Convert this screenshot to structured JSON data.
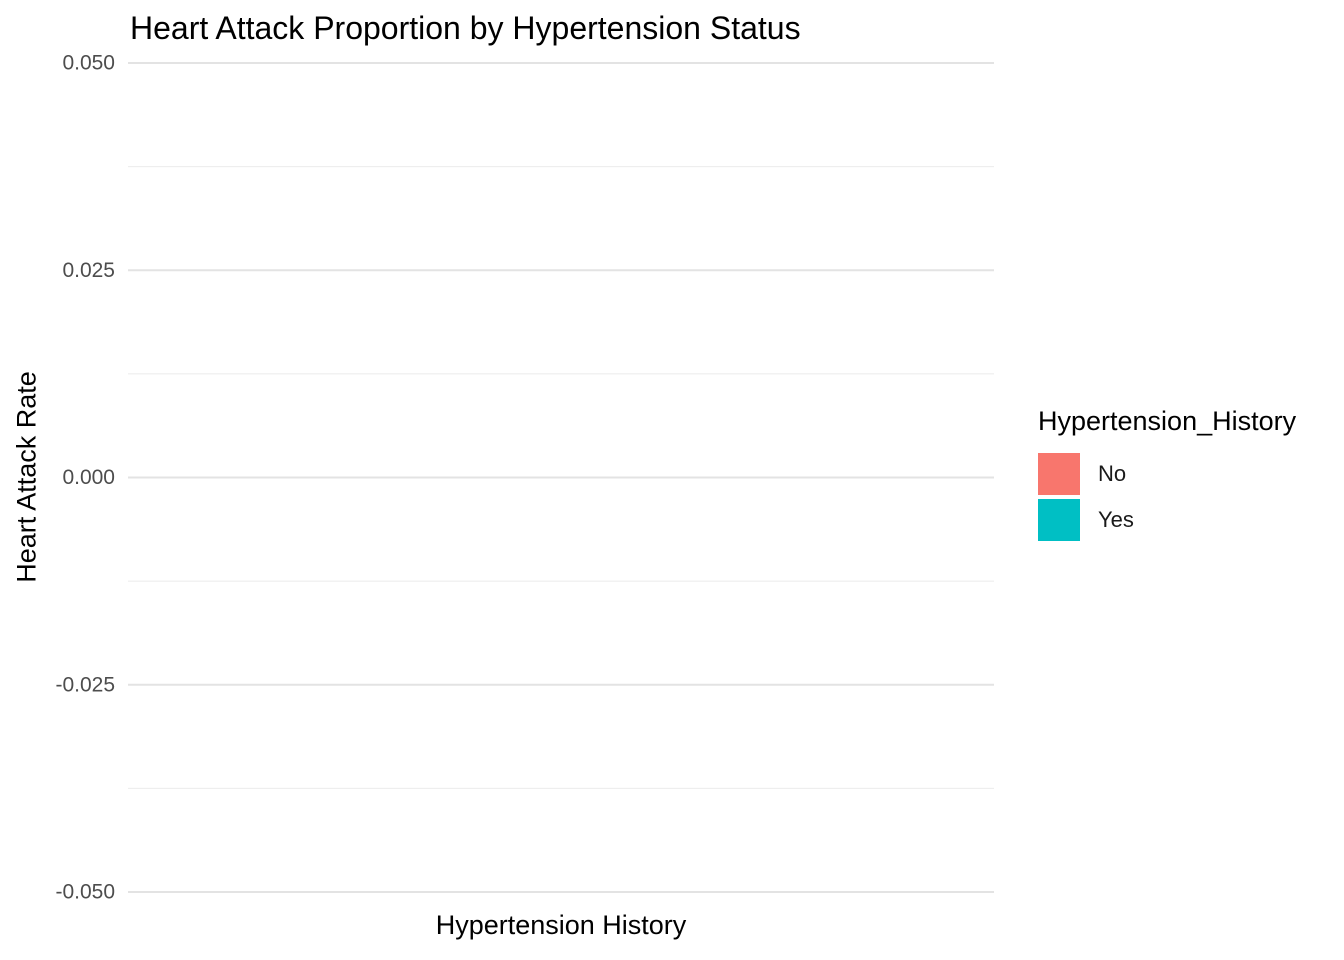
{
  "chart_data": {
    "type": "bar",
    "title": "Heart Attack Proportion by Hypertension Status",
    "xlabel": "Hypertension History",
    "ylabel": "Heart Attack Rate",
    "categories": [],
    "series": [
      {
        "name": "No",
        "color": "#F8766D",
        "values": []
      },
      {
        "name": "Yes",
        "color": "#00BFC4",
        "values": []
      }
    ],
    "ylim": [
      -0.05,
      0.05
    ],
    "yticks": [
      "-0.050",
      "-0.025",
      "0.000",
      "0.025",
      "0.050"
    ],
    "yticks_values": [
      -0.05,
      -0.025,
      0.0,
      0.025,
      0.05
    ],
    "grid": true,
    "legend": {
      "title": "Hypertension_History",
      "placement": "right",
      "items": [
        {
          "label": "No",
          "color": "#F8766D"
        },
        {
          "label": "Yes",
          "color": "#00BFC4"
        }
      ]
    }
  }
}
